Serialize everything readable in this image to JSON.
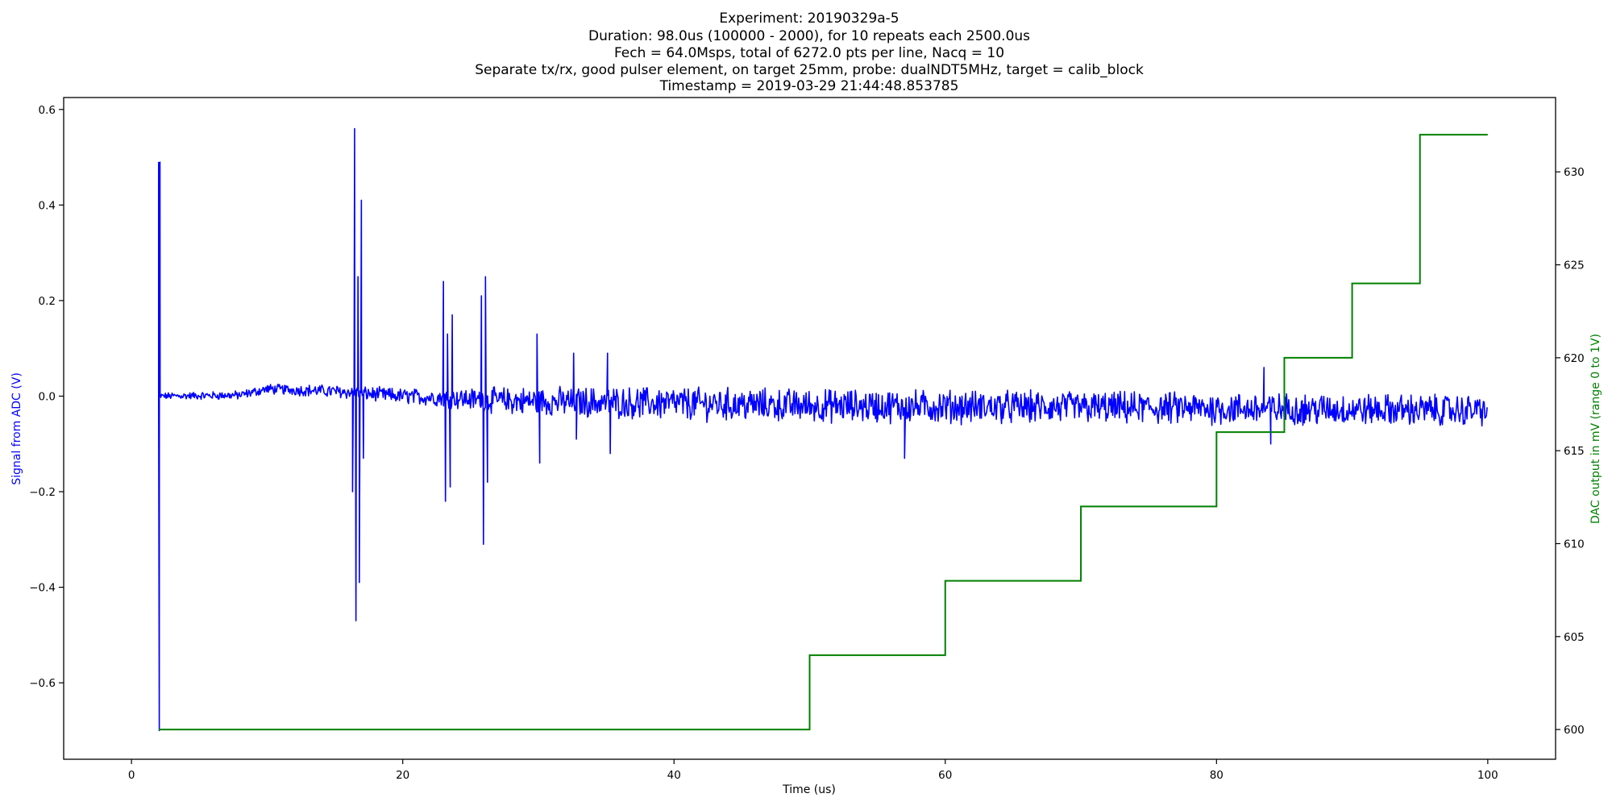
{
  "figure": {
    "title_lines": [
      "Experiment: 20190329a-5",
      "Duration: 98.0us (100000 - 2000), for 10 repeats each 2500.0us",
      "Fech = 64.0Msps, total of 6272.0 pts per line, Nacq = 10",
      "Separate tx/rx, good pulser element, on target 25mm, probe: dualNDT5MHz, target = calib_block",
      "Timestamp = 2019-03-29 21:44:48.853785"
    ]
  },
  "chart_data": {
    "type": "line",
    "xlabel": "Time (us)",
    "xlim": [
      -5,
      105
    ],
    "xticks": [
      0,
      20,
      40,
      60,
      80,
      100
    ],
    "xtick_labels": [
      "0",
      "20",
      "40",
      "60",
      "80",
      "100"
    ],
    "grid": false,
    "left_axis": {
      "label": "Signal from ADC (V)",
      "color": "#0000ff",
      "ylim": [
        -0.76,
        0.625
      ],
      "ticks": [
        -0.6,
        -0.4,
        -0.2,
        0.0,
        0.2,
        0.4,
        0.6
      ],
      "tick_labels": [
        "−0.6",
        "−0.4",
        "−0.2",
        "0.0",
        "0.2",
        "0.4",
        "0.6"
      ]
    },
    "right_axis": {
      "label": "DAC output in mV (range 0 to 1V)",
      "color": "#008000",
      "ylim": [
        598.4,
        634
      ],
      "ticks": [
        600,
        605,
        610,
        615,
        620,
        625,
        630
      ],
      "tick_labels": [
        "600",
        "605",
        "610",
        "615",
        "620",
        "625",
        "630"
      ]
    },
    "series": [
      {
        "axis": "left",
        "color": "#0000ff",
        "x_range": [
          2.0,
          100.0
        ],
        "noise_envelope": [
          [
            2.0,
            0.006
          ],
          [
            8.0,
            0.008
          ],
          [
            16.0,
            0.012
          ],
          [
            22.0,
            0.015
          ],
          [
            28.0,
            0.025
          ],
          [
            40.0,
            0.03
          ],
          [
            60.0,
            0.03
          ],
          [
            100.0,
            0.028
          ]
        ],
        "baseline": [
          [
            2.0,
            0.0
          ],
          [
            8.0,
            0.002
          ],
          [
            10.0,
            0.015
          ],
          [
            15.0,
            0.01
          ],
          [
            20.0,
            0.0
          ],
          [
            28.0,
            -0.01
          ],
          [
            50.0,
            -0.02
          ],
          [
            100.0,
            -0.03
          ]
        ],
        "events": [
          {
            "x": 2.0,
            "y": 0.49
          },
          {
            "x": 2.05,
            "y": -0.7
          },
          {
            "x": 2.1,
            "y": 0.49
          },
          {
            "x": 16.3,
            "y": -0.2
          },
          {
            "x": 16.45,
            "y": 0.56
          },
          {
            "x": 16.55,
            "y": -0.47
          },
          {
            "x": 16.7,
            "y": 0.25
          },
          {
            "x": 16.8,
            "y": -0.39
          },
          {
            "x": 16.95,
            "y": 0.41
          },
          {
            "x": 17.1,
            "y": -0.13
          },
          {
            "x": 23.0,
            "y": 0.24
          },
          {
            "x": 23.15,
            "y": -0.22
          },
          {
            "x": 23.3,
            "y": 0.13
          },
          {
            "x": 23.5,
            "y": -0.19
          },
          {
            "x": 23.65,
            "y": 0.17
          },
          {
            "x": 25.8,
            "y": 0.21
          },
          {
            "x": 25.95,
            "y": -0.31
          },
          {
            "x": 26.1,
            "y": 0.25
          },
          {
            "x": 26.25,
            "y": -0.18
          },
          {
            "x": 29.9,
            "y": 0.13
          },
          {
            "x": 30.1,
            "y": -0.14
          },
          {
            "x": 32.6,
            "y": 0.09
          },
          {
            "x": 32.8,
            "y": -0.09
          },
          {
            "x": 35.1,
            "y": 0.09
          },
          {
            "x": 35.3,
            "y": -0.12
          },
          {
            "x": 57.0,
            "y": -0.13
          },
          {
            "x": 83.5,
            "y": 0.06
          },
          {
            "x": 84.0,
            "y": -0.1
          }
        ]
      },
      {
        "axis": "right",
        "color": "#008000",
        "step": "post",
        "x": [
          2,
          50,
          60,
          70,
          80,
          85,
          90,
          95,
          100
        ],
        "y": [
          600,
          604,
          608,
          612,
          616,
          620,
          624,
          632,
          632
        ]
      }
    ]
  }
}
